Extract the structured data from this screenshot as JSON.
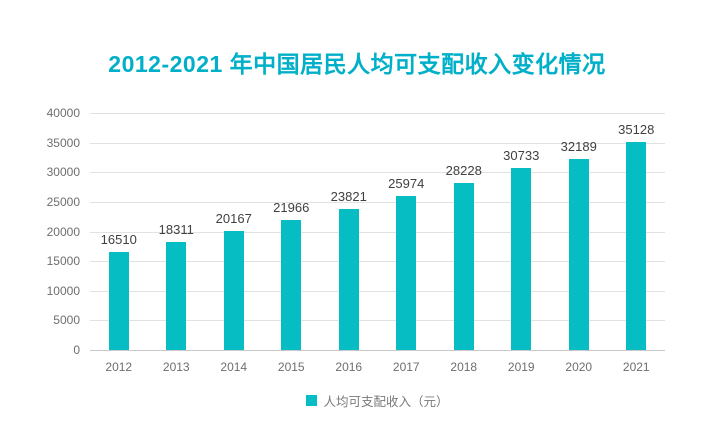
{
  "title": "2012-2021 年中国居民人均可支配收入变化情况",
  "legend": {
    "label": "人均可支配收入（元）"
  },
  "colors": {
    "title": "#00AFC8",
    "bar": "#06BDC4",
    "grid": "#E2E2E2",
    "axis_line": "#C9C9C9",
    "tick_label": "#6E6E6E",
    "data_label": "#404040",
    "legend_text": "#7A7A7A",
    "background": "#FFFFFF"
  },
  "chart_data": {
    "type": "bar",
    "title": "2012-2021 年中国居民人均可支配收入变化情况",
    "categories": [
      "2012",
      "2013",
      "2014",
      "2015",
      "2016",
      "2017",
      "2018",
      "2019",
      "2020",
      "2021"
    ],
    "values": [
      16510,
      18311,
      20167,
      21966,
      23821,
      25974,
      28228,
      30733,
      32189,
      35128
    ],
    "series_name": "人均可支配收入（元）",
    "xlabel": "",
    "ylabel": "",
    "ylim": [
      0,
      40000
    ],
    "yticks": [
      0,
      5000,
      10000,
      15000,
      20000,
      25000,
      30000,
      35000,
      40000
    ],
    "grid": true,
    "data_labels": true,
    "legend_position": "bottom"
  }
}
